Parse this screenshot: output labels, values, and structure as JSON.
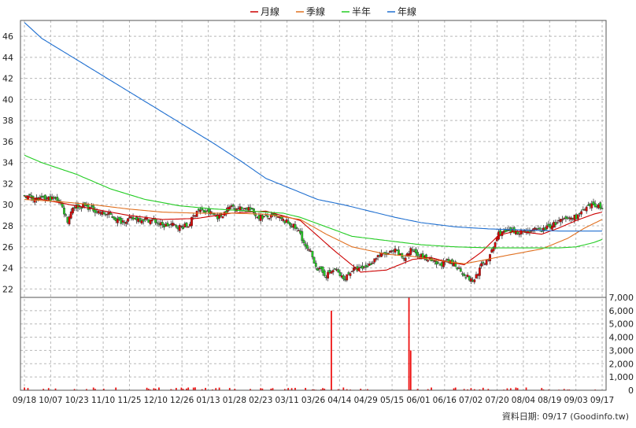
{
  "legend": {
    "items": [
      {
        "label": "月線",
        "color": "#cc0000"
      },
      {
        "label": "季線",
        "color": "#e07020"
      },
      {
        "label": "半年",
        "color": "#22cc22"
      },
      {
        "label": "年線",
        "color": "#1f6fd0"
      }
    ]
  },
  "footer_text": "資料日期: 09/17  (Goodinfo.tw)",
  "chart_data": {
    "type": "candlestick",
    "price_axis": {
      "ylim": [
        21.2,
        47.5
      ],
      "ticks": [
        22,
        24,
        26,
        28,
        30,
        32,
        34,
        36,
        38,
        40,
        42,
        44,
        46
      ]
    },
    "volume_axis": {
      "ylim": [
        0,
        7000
      ],
      "ticks": [
        0,
        1000,
        2000,
        3000,
        4000,
        5000,
        6000,
        7000
      ],
      "tick_labels": [
        "0",
        "1,000",
        "2,000",
        "3,000",
        "4,000",
        "5,000",
        "6,000",
        "7,000"
      ]
    },
    "x_labels": [
      "09/18",
      "10/07",
      "10/23",
      "11/10",
      "11/25",
      "12/10",
      "12/26",
      "01/13",
      "01/28",
      "02/23",
      "03/11",
      "03/26",
      "04/14",
      "04/29",
      "05/15",
      "06/01",
      "06/16",
      "07/02",
      "07/20",
      "08/04",
      "08/19",
      "09/03",
      "09/17"
    ],
    "grid": true,
    "up_color": "#dd0000",
    "down_color": "#22cc22",
    "moving_averages": [
      {
        "name": "月線",
        "color": "#cc0000",
        "anchors": [
          [
            0,
            30.8
          ],
          [
            20,
            30.2
          ],
          [
            40,
            29.6
          ],
          [
            60,
            29.0
          ],
          [
            80,
            28.6
          ],
          [
            100,
            28.7
          ],
          [
            120,
            29.2
          ],
          [
            140,
            29.4
          ],
          [
            160,
            28.5
          ],
          [
            180,
            25.6
          ],
          [
            195,
            23.6
          ],
          [
            210,
            23.8
          ],
          [
            225,
            24.8
          ],
          [
            235,
            25.0
          ],
          [
            245,
            24.6
          ],
          [
            255,
            24.3
          ],
          [
            265,
            25.5
          ],
          [
            275,
            27.1
          ],
          [
            285,
            27.5
          ],
          [
            300,
            27.2
          ],
          [
            310,
            27.8
          ],
          [
            320,
            28.5
          ],
          [
            330,
            29.1
          ],
          [
            335,
            29.3
          ]
        ]
      },
      {
        "name": "季線",
        "color": "#e07020",
        "anchors": [
          [
            0,
            30.5
          ],
          [
            20,
            30.3
          ],
          [
            40,
            30.0
          ],
          [
            60,
            29.6
          ],
          [
            80,
            29.3
          ],
          [
            100,
            29.2
          ],
          [
            120,
            29.2
          ],
          [
            140,
            29.1
          ],
          [
            160,
            28.6
          ],
          [
            175,
            27.2
          ],
          [
            190,
            26.0
          ],
          [
            210,
            25.3
          ],
          [
            225,
            25.1
          ],
          [
            240,
            24.7
          ],
          [
            255,
            24.4
          ],
          [
            265,
            24.7
          ],
          [
            280,
            25.2
          ],
          [
            300,
            25.8
          ],
          [
            315,
            26.8
          ],
          [
            325,
            27.8
          ],
          [
            335,
            28.6
          ]
        ]
      },
      {
        "name": "半年",
        "color": "#22cc22",
        "anchors": [
          [
            0,
            34.7
          ],
          [
            10,
            34.0
          ],
          [
            30,
            32.9
          ],
          [
            50,
            31.5
          ],
          [
            70,
            30.5
          ],
          [
            90,
            29.9
          ],
          [
            110,
            29.6
          ],
          [
            130,
            29.4
          ],
          [
            150,
            29.2
          ],
          [
            160,
            28.8
          ],
          [
            175,
            27.9
          ],
          [
            190,
            27.0
          ],
          [
            210,
            26.6
          ],
          [
            230,
            26.2
          ],
          [
            250,
            26.0
          ],
          [
            270,
            25.9
          ],
          [
            290,
            25.9
          ],
          [
            310,
            25.9
          ],
          [
            320,
            26.0
          ],
          [
            330,
            26.4
          ],
          [
            335,
            26.7
          ]
        ]
      },
      {
        "name": "年線",
        "color": "#1f6fd0",
        "anchors": [
          [
            0,
            47.3
          ],
          [
            10,
            45.8
          ],
          [
            30,
            43.8
          ],
          [
            50,
            41.8
          ],
          [
            70,
            39.8
          ],
          [
            90,
            37.8
          ],
          [
            110,
            35.8
          ],
          [
            125,
            34.2
          ],
          [
            140,
            32.5
          ],
          [
            155,
            31.5
          ],
          [
            170,
            30.5
          ],
          [
            185,
            30.0
          ],
          [
            200,
            29.4
          ],
          [
            215,
            28.8
          ],
          [
            230,
            28.3
          ],
          [
            250,
            27.9
          ],
          [
            270,
            27.7
          ],
          [
            290,
            27.6
          ],
          [
            310,
            27.5
          ],
          [
            320,
            27.5
          ],
          [
            335,
            27.5
          ]
        ]
      }
    ],
    "close_anchors": [
      [
        0,
        30.9
      ],
      [
        8,
        30.5
      ],
      [
        15,
        30.6
      ],
      [
        20,
        30.5
      ],
      [
        25,
        28.5
      ],
      [
        28,
        29.8
      ],
      [
        35,
        29.9
      ],
      [
        45,
        29.2
      ],
      [
        50,
        29.0
      ],
      [
        55,
        28.4
      ],
      [
        60,
        28.6
      ],
      [
        65,
        28.7
      ],
      [
        75,
        28.5
      ],
      [
        80,
        28.0
      ],
      [
        85,
        28.1
      ],
      [
        90,
        27.9
      ],
      [
        95,
        28.0
      ],
      [
        100,
        29.5
      ],
      [
        108,
        29.2
      ],
      [
        113,
        28.8
      ],
      [
        120,
        29.9
      ],
      [
        126,
        29.6
      ],
      [
        130,
        29.7
      ],
      [
        135,
        28.9
      ],
      [
        140,
        28.8
      ],
      [
        145,
        28.9
      ],
      [
        150,
        28.5
      ],
      [
        155,
        28.1
      ],
      [
        160,
        27.3
      ],
      [
        163,
        25.9
      ],
      [
        166,
        25.4
      ],
      [
        170,
        23.9
      ],
      [
        175,
        23.3
      ],
      [
        180,
        23.9
      ],
      [
        185,
        22.9
      ],
      [
        190,
        23.8
      ],
      [
        195,
        23.9
      ],
      [
        200,
        24.3
      ],
      [
        205,
        25.2
      ],
      [
        210,
        25.3
      ],
      [
        215,
        25.6
      ],
      [
        220,
        24.9
      ],
      [
        225,
        25.8
      ],
      [
        230,
        25.1
      ],
      [
        240,
        24.3
      ],
      [
        245,
        24.6
      ],
      [
        250,
        24.3
      ],
      [
        255,
        23.4
      ],
      [
        260,
        22.7
      ],
      [
        265,
        24.2
      ],
      [
        270,
        25.1
      ],
      [
        275,
        27.3
      ],
      [
        280,
        27.4
      ],
      [
        290,
        27.5
      ],
      [
        300,
        27.6
      ],
      [
        310,
        28.4
      ],
      [
        320,
        28.9
      ],
      [
        326,
        29.6
      ],
      [
        330,
        30.0
      ],
      [
        335,
        29.8
      ]
    ],
    "volume_spikes": [
      [
        178,
        6000
      ],
      [
        223,
        7000
      ],
      [
        224,
        3000
      ]
    ]
  }
}
